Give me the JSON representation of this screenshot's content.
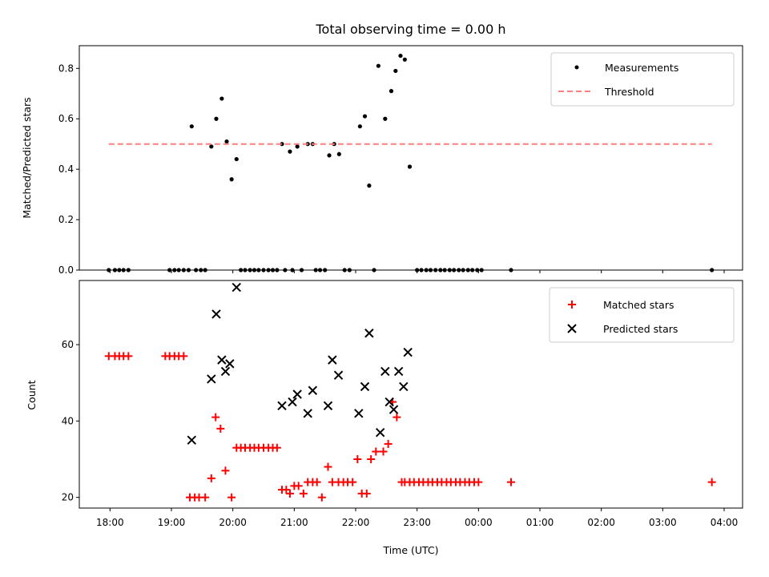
{
  "figure": {
    "title": "Total observing time = 0.00 h"
  },
  "chart_data": [
    {
      "type": "scatter",
      "ylabel": "Matched/Predicted stars",
      "xlabel": "",
      "ylim": [
        0,
        0.89
      ],
      "yticks": [
        "0.0",
        "0.2",
        "0.4",
        "0.6",
        "0.8"
      ],
      "ytick_values": [
        0,
        0.2,
        0.4,
        0.6,
        0.8
      ],
      "xticks": [
        "18:00",
        "19:00",
        "20:00",
        "21:00",
        "22:00",
        "23:00",
        "00:00",
        "01:00",
        "02:00",
        "03:00",
        "04:00"
      ],
      "xtick_values": [
        18,
        19,
        20,
        21,
        22,
        23,
        24,
        25,
        26,
        27,
        28
      ],
      "xlim": [
        17.5,
        28.3
      ],
      "legend_position": "top-right",
      "series": [
        {
          "name": "Measurements",
          "marker": "dot",
          "color": "#000000",
          "x": [
            17.98,
            18.08,
            18.15,
            18.22,
            18.3,
            18.97,
            19.05,
            19.12,
            19.2,
            19.28,
            19.4,
            19.48,
            19.55,
            19.33,
            19.65,
            19.73,
            19.82,
            19.9,
            19.98,
            20.06,
            20.13,
            20.2,
            20.28,
            20.35,
            20.42,
            20.5,
            20.58,
            20.65,
            20.72,
            20.8,
            20.85,
            20.93,
            20.97,
            21.05,
            21.12,
            21.22,
            21.3,
            21.35,
            21.42,
            21.5,
            21.57,
            21.65,
            21.73,
            21.82,
            21.9,
            22.07,
            22.15,
            22.22,
            22.3,
            22.37,
            22.48,
            22.58,
            22.65,
            22.73,
            22.8,
            22.88,
            23.0,
            23.07,
            23.15,
            23.22,
            23.3,
            23.38,
            23.45,
            23.53,
            23.6,
            23.68,
            23.75,
            23.83,
            23.9,
            23.98,
            24.05,
            24.53,
            27.8
          ],
          "values": [
            0,
            0,
            0,
            0,
            0,
            0,
            0,
            0,
            0,
            0,
            0,
            0,
            0,
            0.57,
            0.49,
            0.6,
            0.68,
            0.51,
            0.36,
            0.44,
            0,
            0,
            0,
            0,
            0,
            0,
            0,
            0,
            0,
            0.5,
            0,
            0.47,
            0,
            0.49,
            0,
            0.5,
            0.5,
            0,
            0,
            0,
            0.455,
            0.5,
            0.46,
            0,
            0,
            0.57,
            0.61,
            0.335,
            0,
            0.81,
            0.6,
            0.71,
            0.79,
            0.85,
            0.835,
            0.41,
            0,
            0,
            0,
            0,
            0,
            0,
            0,
            0,
            0,
            0,
            0,
            0,
            0,
            0,
            0,
            0,
            0
          ]
        },
        {
          "name": "Threshold",
          "marker": "dashed-line",
          "color": "#ff7f7f",
          "x": [
            17.98,
            27.8
          ],
          "values": [
            0.5,
            0.5
          ]
        }
      ]
    },
    {
      "type": "scatter",
      "ylabel": "Count",
      "xlabel": "Time (UTC)",
      "ylim": [
        17.2,
        76.8
      ],
      "yticks": [
        "20",
        "40",
        "60"
      ],
      "ytick_values": [
        20,
        40,
        60
      ],
      "xticks": [
        "18:00",
        "19:00",
        "20:00",
        "21:00",
        "22:00",
        "23:00",
        "00:00",
        "01:00",
        "02:00",
        "03:00",
        "04:00"
      ],
      "xtick_values": [
        18,
        19,
        20,
        21,
        22,
        23,
        24,
        25,
        26,
        27,
        28
      ],
      "xlim": [
        17.5,
        28.3
      ],
      "legend_position": "top-right",
      "series": [
        {
          "name": "Matched stars",
          "marker": "plus",
          "color": "#ff0000",
          "x": [
            17.98,
            18.08,
            18.15,
            18.22,
            18.3,
            18.9,
            18.97,
            19.05,
            19.12,
            19.2,
            19.3,
            19.38,
            19.45,
            19.55,
            19.65,
            19.72,
            19.8,
            19.88,
            19.98,
            20.06,
            20.13,
            20.2,
            20.28,
            20.35,
            20.42,
            20.5,
            20.58,
            20.65,
            20.72,
            20.8,
            20.87,
            20.93,
            21.0,
            21.07,
            21.15,
            21.22,
            21.3,
            21.37,
            21.45,
            21.55,
            21.62,
            21.72,
            21.8,
            21.87,
            21.95,
            22.03,
            22.1,
            22.18,
            22.25,
            22.33,
            22.45,
            22.53,
            22.6,
            22.67,
            22.75,
            22.8,
            22.88,
            22.95,
            23.03,
            23.1,
            23.18,
            23.25,
            23.33,
            23.4,
            23.48,
            23.55,
            23.63,
            23.7,
            23.78,
            23.85,
            23.93,
            24.0,
            24.53,
            27.8
          ],
          "values": [
            57,
            57,
            57,
            57,
            57,
            57,
            57,
            57,
            57,
            57,
            20,
            20,
            20,
            20,
            25,
            41,
            38,
            27,
            20,
            33,
            33,
            33,
            33,
            33,
            33,
            33,
            33,
            33,
            33,
            22,
            22,
            21,
            23,
            23,
            21,
            24,
            24,
            24,
            20,
            28,
            24,
            24,
            24,
            24,
            24,
            30,
            21,
            21,
            30,
            32,
            32,
            34,
            45,
            41,
            24,
            24,
            24,
            24,
            24,
            24,
            24,
            24,
            24,
            24,
            24,
            24,
            24,
            24,
            24,
            24,
            24,
            24,
            24,
            24
          ]
        },
        {
          "name": "Predicted stars",
          "marker": "x",
          "color": "#000000",
          "x": [
            19.33,
            19.65,
            19.73,
            19.82,
            19.88,
            19.95,
            20.06,
            20.8,
            20.97,
            21.05,
            21.22,
            21.3,
            21.55,
            21.62,
            21.72,
            22.05,
            22.15,
            22.22,
            22.4,
            22.48,
            22.55,
            22.62,
            22.7,
            22.78,
            22.85
          ],
          "values": [
            35,
            51,
            68,
            56,
            53,
            55,
            75,
            44,
            45,
            47,
            42,
            48,
            44,
            56,
            52,
            42,
            49,
            63,
            37,
            53,
            45,
            43,
            53,
            49,
            58
          ]
        }
      ]
    }
  ]
}
